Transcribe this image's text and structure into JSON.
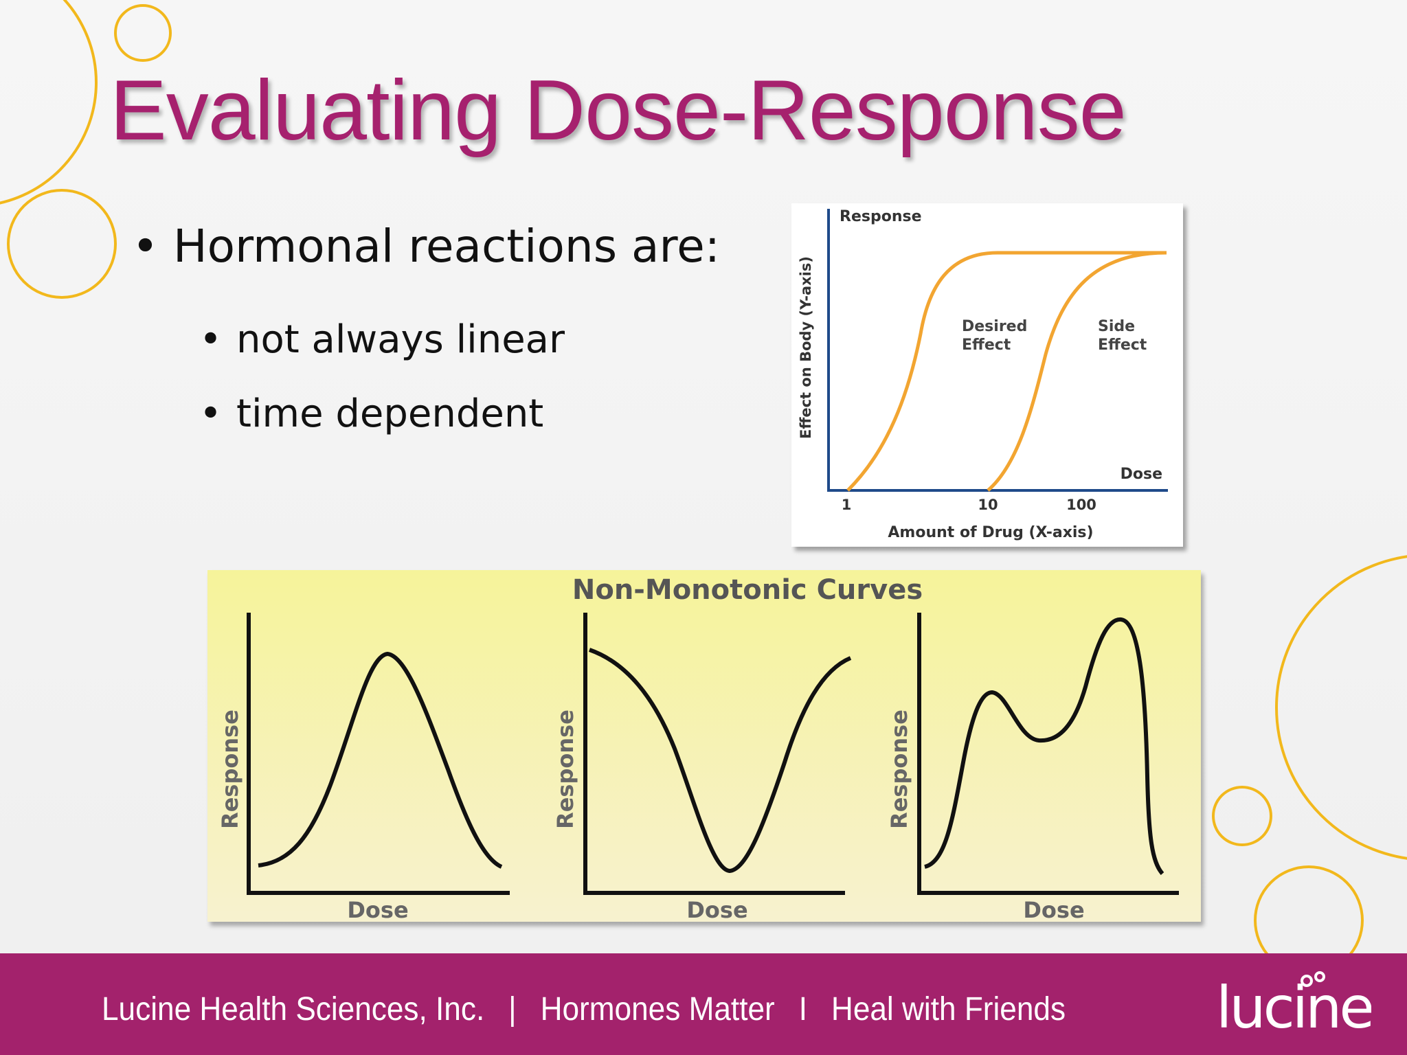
{
  "slide": {
    "title": "Evaluating Dose-Response",
    "bullets": {
      "main": "Hormonal reactions are:",
      "sub": [
        "not always linear",
        "time dependent"
      ]
    }
  },
  "colors": {
    "title": "#a6216e",
    "footer": "#a3226c",
    "decoration": "#f2b81c",
    "curve_orange": "#f2a531",
    "axis_blue": "#1f4a8a",
    "panel_yellow": "#f7f5a6"
  },
  "chart_data": [
    {
      "type": "line",
      "title": "",
      "ylabel_top": "Response",
      "ylabel": "Effect on Body (Y-axis)",
      "xlabel_right": "Dose",
      "xlabel": "Amount of Drug (X-axis)",
      "x_scale": "log",
      "x_ticks": [
        "1",
        "10",
        "100"
      ],
      "series": [
        {
          "name": "Desired Effect",
          "label": [
            "Desired",
            "Effect"
          ],
          "shape": "sigmoid",
          "x": [
            1,
            2,
            3,
            5,
            10,
            1000
          ],
          "y": [
            0,
            0.25,
            0.6,
            0.9,
            1.0,
            1.0
          ]
        },
        {
          "name": "Side Effect",
          "label": [
            "Side",
            "Effect"
          ],
          "shape": "sigmoid",
          "x": [
            10,
            20,
            40,
            100,
            300,
            1000
          ],
          "y": [
            0,
            0.3,
            0.6,
            0.85,
            0.97,
            1.0
          ]
        }
      ]
    },
    {
      "type": "line",
      "title": "Non-Monotonic Curves",
      "panels": [
        {
          "xlabel": "Dose",
          "ylabel": "Response",
          "shape": "inverted-U",
          "x": [
            0,
            0.2,
            0.5,
            0.8,
            1
          ],
          "y": [
            0.1,
            0.35,
            1.0,
            0.35,
            0.1
          ]
        },
        {
          "xlabel": "Dose",
          "ylabel": "Response",
          "shape": "U",
          "x": [
            0,
            0.2,
            0.5,
            0.8,
            1
          ],
          "y": [
            0.95,
            0.75,
            0.0,
            0.75,
            0.95
          ]
        },
        {
          "xlabel": "Dose",
          "ylabel": "Response",
          "shape": "multiphasic",
          "x": [
            0,
            0.25,
            0.45,
            0.75,
            1
          ],
          "y": [
            0.1,
            0.7,
            0.5,
            1.0,
            0.1
          ]
        }
      ]
    }
  ],
  "footer": {
    "company": "Lucine Health Sciences, Inc.",
    "separator1": "|",
    "item2": "Hormones Matter",
    "separator2": "I",
    "item3": "Heal with Friends",
    "logo_text": "lucine"
  }
}
